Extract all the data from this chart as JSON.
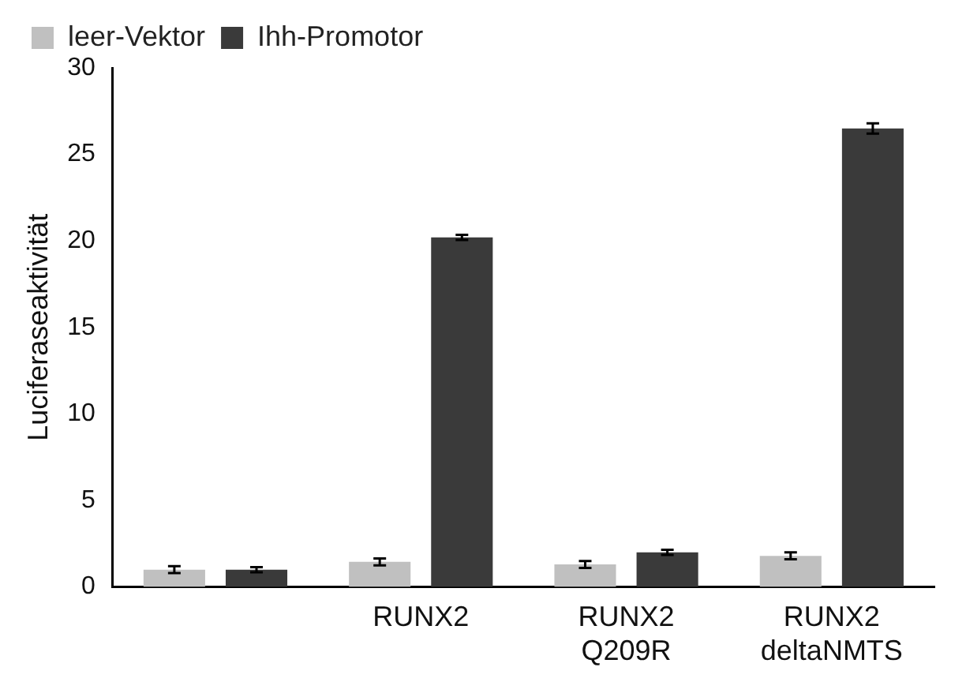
{
  "chart_data": {
    "type": "bar",
    "ylabel": "Luciferaseaktivität",
    "categories": [
      null,
      "RUNX2",
      "RUNX2\nQ209R",
      "RUNX2\ndeltaNMTS"
    ],
    "series": [
      {
        "name": "leer-Vektor",
        "color": "#c0c0c0",
        "values": [
          1.0,
          1.45,
          1.3,
          1.8
        ],
        "errors": [
          0.2,
          0.2,
          0.2,
          0.2
        ]
      },
      {
        "name": "Ihh-Promotor",
        "color": "#3a3a3a",
        "values": [
          1.0,
          20.2,
          2.0,
          26.5
        ],
        "errors": [
          0.15,
          0.15,
          0.15,
          0.3
        ]
      }
    ],
    "ylim": [
      0,
      30
    ],
    "yticks": [
      0,
      5,
      10,
      15,
      20,
      25,
      30
    ],
    "grid": false,
    "legend": "top"
  }
}
